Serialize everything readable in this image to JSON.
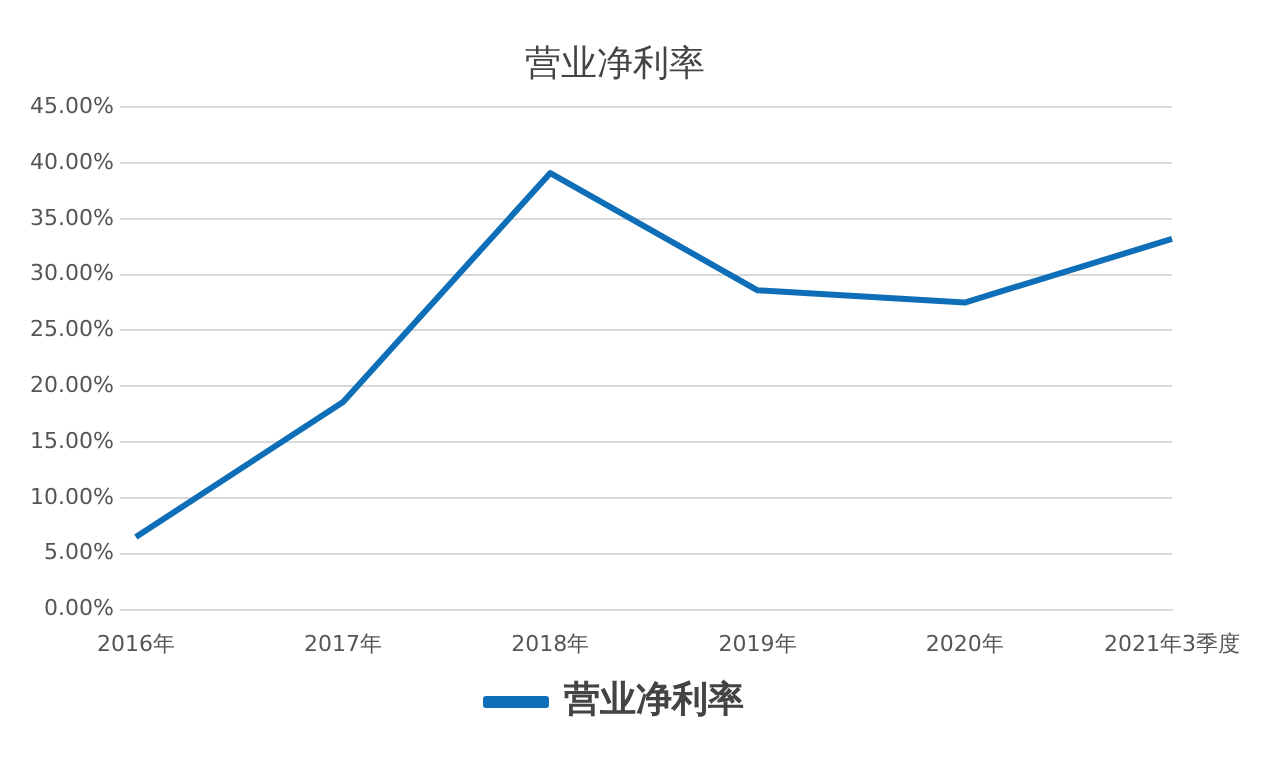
{
  "chart_data": {
    "type": "line",
    "title": "营业净利率",
    "categories": [
      "2016年",
      "2017年",
      "2018年",
      "2019年",
      "2020年",
      "2021年3季度"
    ],
    "series": [
      {
        "name": "营业净利率",
        "color": "#0e6fb8",
        "values": [
          6.5,
          18.6,
          39.1,
          28.6,
          27.5,
          33.2
        ]
      }
    ],
    "ylim": [
      0,
      45
    ],
    "yticks": [
      {
        "value": 0,
        "label": "0.00%"
      },
      {
        "value": 5,
        "label": "5.00%"
      },
      {
        "value": 10,
        "label": "10.00%"
      },
      {
        "value": 15,
        "label": "15.00%"
      },
      {
        "value": 20,
        "label": "20.00%"
      },
      {
        "value": 25,
        "label": "25.00%"
      },
      {
        "value": 30,
        "label": "30.00%"
      },
      {
        "value": 35,
        "label": "35.00%"
      },
      {
        "value": 40,
        "label": "40.00%"
      },
      {
        "value": 45,
        "label": "45.00%"
      }
    ],
    "grid": "y",
    "legend": "bottom",
    "marker": "none",
    "line_style": "solid"
  }
}
